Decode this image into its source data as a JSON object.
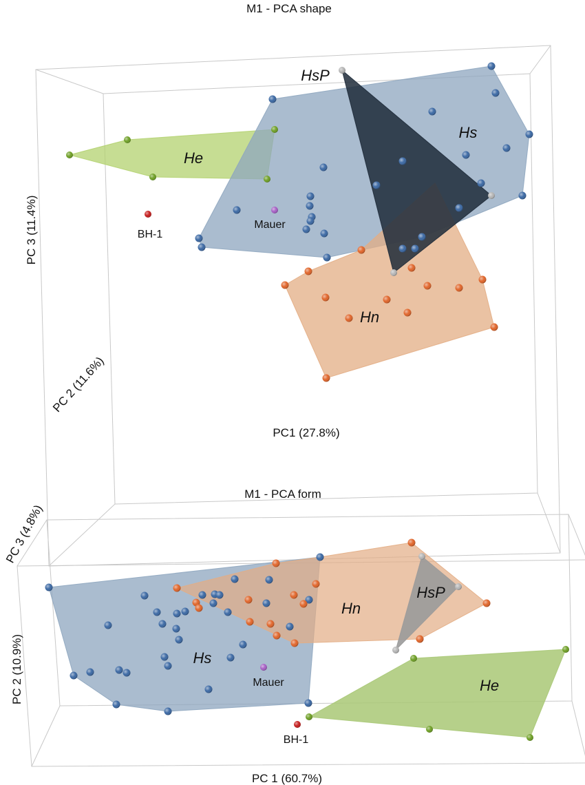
{
  "chart_data": [
    {
      "type": "scatter",
      "projection": "3d",
      "title": "M1 - PCA shape",
      "axes": {
        "x": "PC1 (27.8%)",
        "y": "PC 2 (11.6%)",
        "z": "PC 3 (11.4%)"
      },
      "grid": false,
      "groups": [
        {
          "name": "Hs",
          "color": "#3b68a3",
          "hull_color": "#8ea6bf",
          "label_display": "Hs"
        },
        {
          "name": "Hn",
          "color": "#e0652a",
          "hull_color": "#e3ad84",
          "label_display": "Hn"
        },
        {
          "name": "He",
          "color": "#6e9f25",
          "hull_color": "#b3d26f",
          "label_display": "He"
        },
        {
          "name": "HsP",
          "color": "#b4b4b4",
          "hull_color": "#1f2b3a",
          "label_display": "HsP"
        }
      ],
      "specimens": [
        {
          "name": "BH-1",
          "color": "#c61e1e"
        },
        {
          "name": "Mauer",
          "color": "#a55fc4"
        }
      ]
    },
    {
      "type": "scatter",
      "projection": "3d",
      "title": "M1 - PCA form",
      "axes": {
        "x": "PC 1 (60.7%)",
        "y": "PC 2 (10.9%)",
        "z": "PC 3 (4.8%)"
      },
      "grid": false,
      "groups": [
        {
          "name": "Hs",
          "color": "#3b68a3",
          "hull_color": "#8ea6bf",
          "label_display": "Hs"
        },
        {
          "name": "Hn",
          "color": "#e0652a",
          "hull_color": "#e3ad84",
          "label_display": "Hn"
        },
        {
          "name": "He",
          "color": "#6e9f25",
          "hull_color": "#a9c876",
          "label_display": "He"
        },
        {
          "name": "HsP",
          "color": "#b4b4b4",
          "hull_color": "#9a9a9a",
          "label_display": "HsP"
        }
      ],
      "specimens": [
        {
          "name": "BH-1",
          "color": "#c61e1e"
        },
        {
          "name": "Mauer",
          "color": "#a55fc4"
        }
      ]
    }
  ]
}
